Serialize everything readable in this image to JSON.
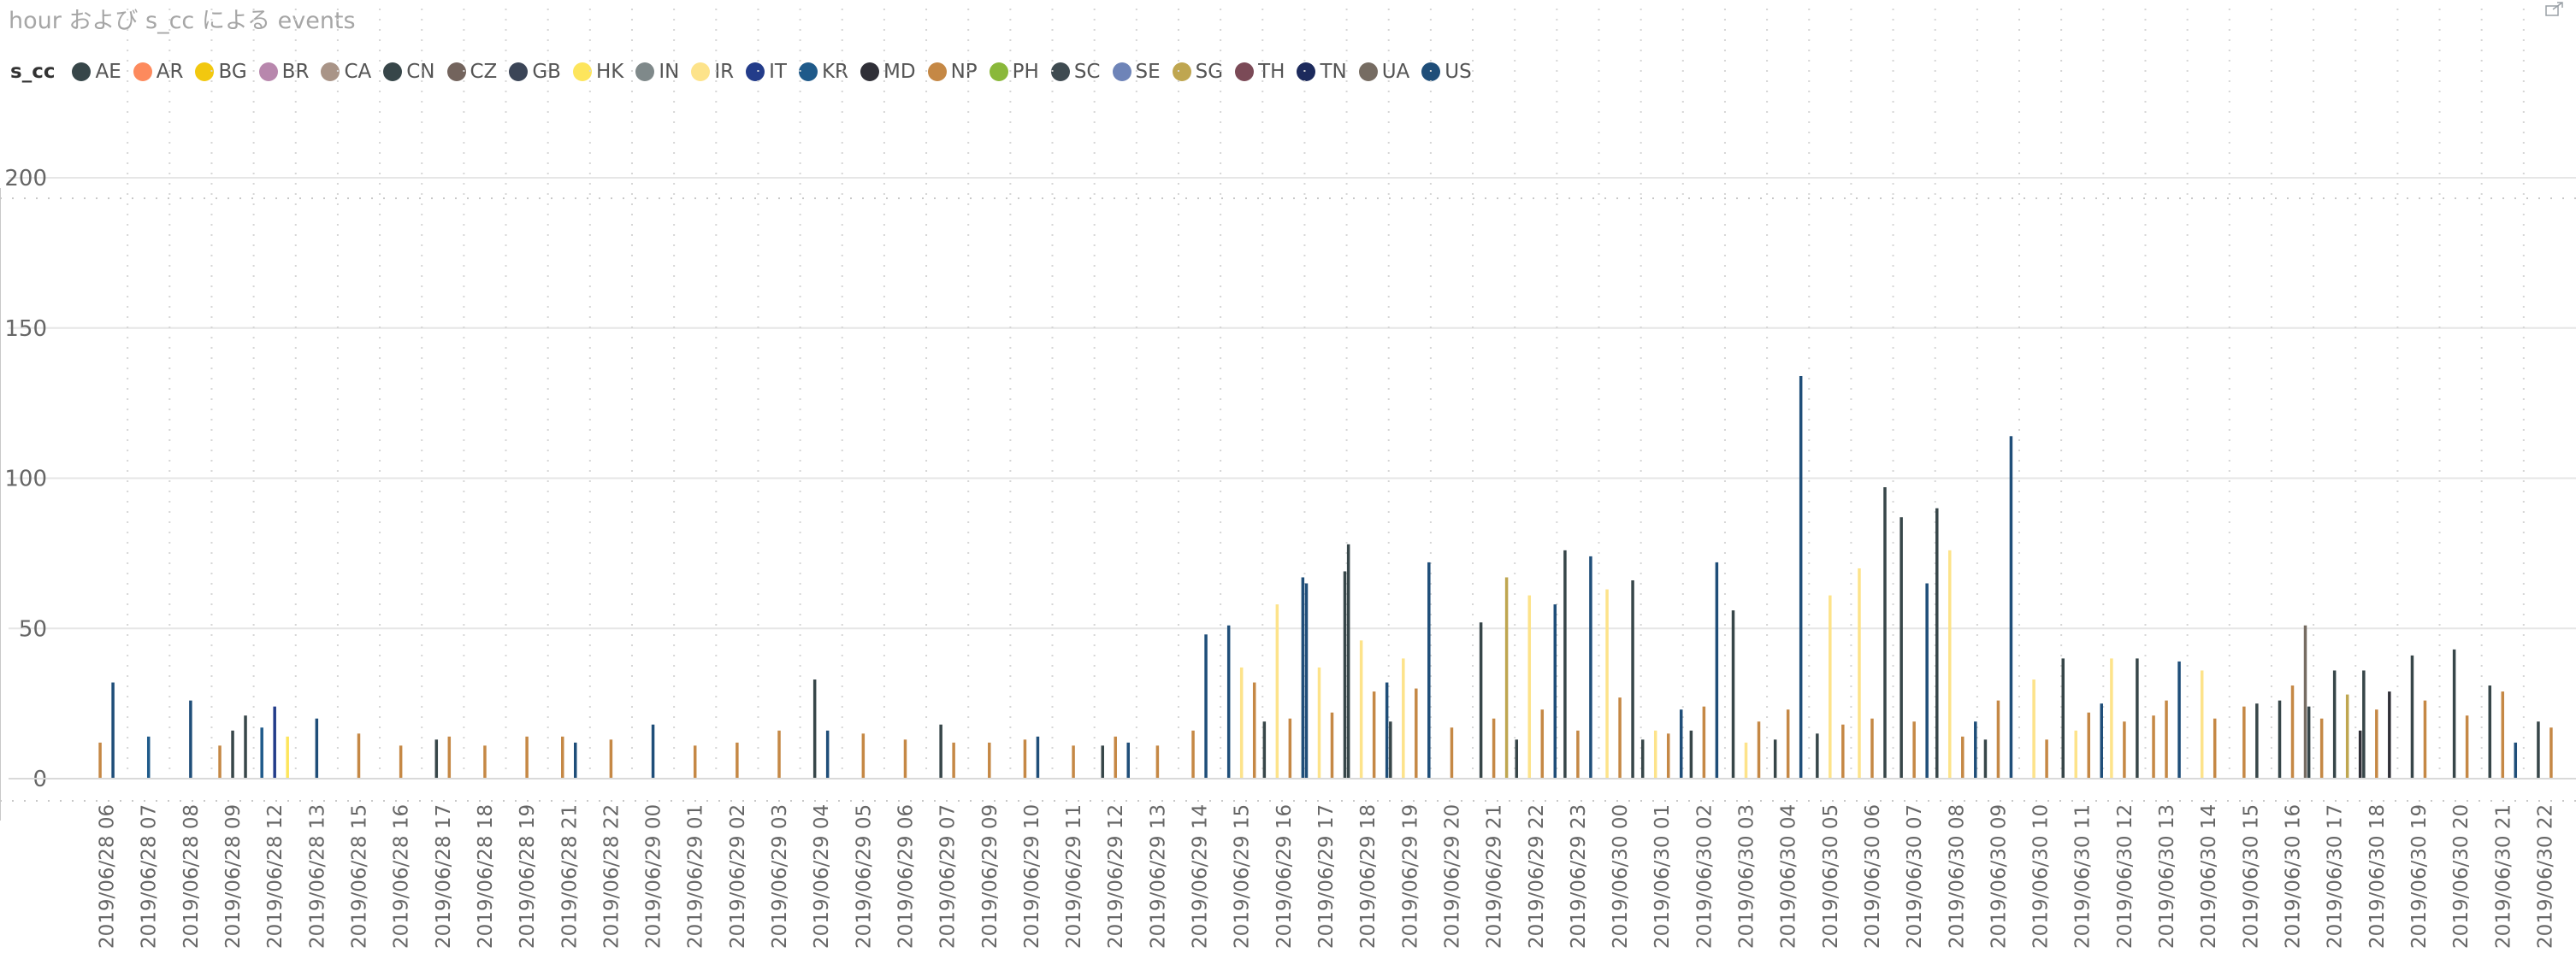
{
  "chart_data": {
    "type": "bar",
    "title": "hour および s_cc による events",
    "legend": {
      "title": "s_cc",
      "entries": [
        {
          "name": "AE",
          "color": "#374649"
        },
        {
          "name": "AR",
          "color": "#FD8A5D"
        },
        {
          "name": "BG",
          "color": "#F2C80F"
        },
        {
          "name": "BR",
          "color": "#B887AD"
        },
        {
          "name": "CA",
          "color": "#A99487"
        },
        {
          "name": "CN",
          "color": "#374649"
        },
        {
          "name": "CZ",
          "color": "#73645D"
        },
        {
          "name": "GB",
          "color": "#3B4557"
        },
        {
          "name": "HK",
          "color": "#FDE55C"
        },
        {
          "name": "IN",
          "color": "#7F898A"
        },
        {
          "name": "IR",
          "color": "#FDE38A"
        },
        {
          "name": "IT",
          "color": "#233C8A"
        },
        {
          "name": "KR",
          "color": "#1F5A8A"
        },
        {
          "name": "MD",
          "color": "#2F2F37"
        },
        {
          "name": "NP",
          "color": "#C58845"
        },
        {
          "name": "PH",
          "color": "#8AB83A"
        },
        {
          "name": "SC",
          "color": "#3F4B51"
        },
        {
          "name": "SE",
          "color": "#6E84B8"
        },
        {
          "name": "SG",
          "color": "#BFA650"
        },
        {
          "name": "TH",
          "color": "#7B4A57"
        },
        {
          "name": "TN",
          "color": "#1C2A5C"
        },
        {
          "name": "UA",
          "color": "#766C62"
        },
        {
          "name": "US",
          "color": "#1F4E79"
        }
      ]
    },
    "ylim": [
      0,
      200
    ],
    "yticks": [
      0,
      50,
      100,
      150,
      200
    ],
    "grid": true,
    "categories": [
      "2019/06/28 06",
      "2019/06/28 07",
      "2019/06/28 08",
      "2019/06/28 09",
      "2019/06/28 12",
      "2019/06/28 13",
      "2019/06/28 15",
      "2019/06/28 16",
      "2019/06/28 17",
      "2019/06/28 18",
      "2019/06/28 19",
      "2019/06/28 21",
      "2019/06/28 22",
      "2019/06/29 00",
      "2019/06/29 01",
      "2019/06/29 02",
      "2019/06/29 03",
      "2019/06/29 04",
      "2019/06/29 05",
      "2019/06/29 06",
      "2019/06/29 07",
      "2019/06/29 09",
      "2019/06/29 10",
      "2019/06/29 11",
      "2019/06/29 12",
      "2019/06/29 13",
      "2019/06/29 14",
      "2019/06/29 15",
      "2019/06/29 16",
      "2019/06/29 17",
      "2019/06/29 18",
      "2019/06/29 19",
      "2019/06/29 20",
      "2019/06/29 21",
      "2019/06/29 22",
      "2019/06/29 23",
      "2019/06/30 00",
      "2019/06/30 01",
      "2019/06/30 02",
      "2019/06/30 03",
      "2019/06/30 04",
      "2019/06/30 05",
      "2019/06/30 06",
      "2019/06/30 07",
      "2019/06/30 08",
      "2019/06/30 09",
      "2019/06/30 10",
      "2019/06/30 11",
      "2019/06/30 12",
      "2019/06/30 13",
      "2019/06/30 14",
      "2019/06/30 15",
      "2019/06/30 16",
      "2019/06/30 17",
      "2019/06/30 18",
      "2019/06/30 19",
      "2019/06/30 20",
      "2019/06/30 21",
      "2019/06/30 22"
    ],
    "bars": [
      {
        "cat": 0,
        "series": "NP",
        "value": 12
      },
      {
        "cat": 0,
        "series": "US",
        "value": 32
      },
      {
        "cat": 1,
        "series": "KR",
        "value": 14
      },
      {
        "cat": 2,
        "series": "US",
        "value": 26
      },
      {
        "cat": 3,
        "series": "NP",
        "value": 11
      },
      {
        "cat": 3,
        "series": "AE",
        "value": 16
      },
      {
        "cat": 3,
        "series": "CN",
        "value": 21
      },
      {
        "cat": 4,
        "series": "KR",
        "value": 17
      },
      {
        "cat": 4,
        "series": "IT",
        "value": 24
      },
      {
        "cat": 4,
        "series": "HK",
        "value": 14
      },
      {
        "cat": 5,
        "series": "US",
        "value": 20
      },
      {
        "cat": 6,
        "series": "NP",
        "value": 15
      },
      {
        "cat": 7,
        "series": "NP",
        "value": 11
      },
      {
        "cat": 8,
        "series": "AE",
        "value": 13
      },
      {
        "cat": 8,
        "series": "NP",
        "value": 14
      },
      {
        "cat": 9,
        "series": "NP",
        "value": 11
      },
      {
        "cat": 10,
        "series": "NP",
        "value": 14
      },
      {
        "cat": 11,
        "series": "NP",
        "value": 14
      },
      {
        "cat": 11,
        "series": "US",
        "value": 12
      },
      {
        "cat": 12,
        "series": "NP",
        "value": 13
      },
      {
        "cat": 13,
        "series": "US",
        "value": 18
      },
      {
        "cat": 14,
        "series": "NP",
        "value": 11
      },
      {
        "cat": 15,
        "series": "NP",
        "value": 12
      },
      {
        "cat": 16,
        "series": "NP",
        "value": 16
      },
      {
        "cat": 17,
        "series": "AE",
        "value": 33
      },
      {
        "cat": 17,
        "series": "US",
        "value": 16
      },
      {
        "cat": 18,
        "series": "NP",
        "value": 15
      },
      {
        "cat": 19,
        "series": "NP",
        "value": 13
      },
      {
        "cat": 20,
        "series": "AE",
        "value": 18
      },
      {
        "cat": 20,
        "series": "NP",
        "value": 12
      },
      {
        "cat": 21,
        "series": "NP",
        "value": 12
      },
      {
        "cat": 22,
        "series": "NP",
        "value": 13
      },
      {
        "cat": 22,
        "series": "US",
        "value": 14
      },
      {
        "cat": 23,
        "series": "NP",
        "value": 11
      },
      {
        "cat": 24,
        "series": "AE",
        "value": 11
      },
      {
        "cat": 24,
        "series": "NP",
        "value": 14
      },
      {
        "cat": 24,
        "series": "US",
        "value": 12
      },
      {
        "cat": 25,
        "series": "NP",
        "value": 11
      },
      {
        "cat": 26,
        "series": "NP",
        "value": 16
      },
      {
        "cat": 26,
        "series": "US",
        "value": 48
      },
      {
        "cat": 27,
        "series": "US",
        "value": 51
      },
      {
        "cat": 27,
        "series": "IR",
        "value": 37
      },
      {
        "cat": 27,
        "series": "NP",
        "value": 32
      },
      {
        "cat": 28,
        "series": "AE",
        "value": 19
      },
      {
        "cat": 28,
        "series": "IR",
        "value": 58
      },
      {
        "cat": 28,
        "series": "NP",
        "value": 20
      },
      {
        "cat": 28,
        "series": "US",
        "value": 67
      },
      {
        "cat": 29,
        "series": "US",
        "value": 65
      },
      {
        "cat": 29,
        "series": "IR",
        "value": 37
      },
      {
        "cat": 29,
        "series": "NP",
        "value": 22
      },
      {
        "cat": 29,
        "series": "AE",
        "value": 69
      },
      {
        "cat": 30,
        "series": "AE",
        "value": 78
      },
      {
        "cat": 30,
        "series": "IR",
        "value": 46
      },
      {
        "cat": 30,
        "series": "NP",
        "value": 29
      },
      {
        "cat": 30,
        "series": "US",
        "value": 32
      },
      {
        "cat": 31,
        "series": "AE",
        "value": 19
      },
      {
        "cat": 31,
        "series": "IR",
        "value": 40
      },
      {
        "cat": 31,
        "series": "NP",
        "value": 30
      },
      {
        "cat": 31,
        "series": "US",
        "value": 72
      },
      {
        "cat": 32,
        "series": "NP",
        "value": 17
      },
      {
        "cat": 33,
        "series": "AE",
        "value": 52
      },
      {
        "cat": 33,
        "series": "NP",
        "value": 20
      },
      {
        "cat": 33,
        "series": "SG",
        "value": 67
      },
      {
        "cat": 34,
        "series": "AE",
        "value": 13
      },
      {
        "cat": 34,
        "series": "IR",
        "value": 61
      },
      {
        "cat": 34,
        "series": "NP",
        "value": 23
      },
      {
        "cat": 34,
        "series": "US",
        "value": 58
      },
      {
        "cat": 35,
        "series": "AE",
        "value": 76
      },
      {
        "cat": 35,
        "series": "NP",
        "value": 16
      },
      {
        "cat": 35,
        "series": "US",
        "value": 74
      },
      {
        "cat": 36,
        "series": "IR",
        "value": 63
      },
      {
        "cat": 36,
        "series": "NP",
        "value": 27
      },
      {
        "cat": 36,
        "series": "AE",
        "value": 66
      },
      {
        "cat": 37,
        "series": "AE",
        "value": 13
      },
      {
        "cat": 37,
        "series": "IR",
        "value": 16
      },
      {
        "cat": 37,
        "series": "NP",
        "value": 15
      },
      {
        "cat": 37,
        "series": "US",
        "value": 23
      },
      {
        "cat": 38,
        "series": "AE",
        "value": 16
      },
      {
        "cat": 38,
        "series": "NP",
        "value": 24
      },
      {
        "cat": 38,
        "series": "US",
        "value": 72
      },
      {
        "cat": 39,
        "series": "AE",
        "value": 56
      },
      {
        "cat": 39,
        "series": "IR",
        "value": 12
      },
      {
        "cat": 39,
        "series": "NP",
        "value": 19
      },
      {
        "cat": 40,
        "series": "AE",
        "value": 13
      },
      {
        "cat": 40,
        "series": "NP",
        "value": 23
      },
      {
        "cat": 40,
        "series": "US",
        "value": 134
      },
      {
        "cat": 41,
        "series": "AE",
        "value": 15
      },
      {
        "cat": 41,
        "series": "IR",
        "value": 61
      },
      {
        "cat": 41,
        "series": "NP",
        "value": 18
      },
      {
        "cat": 42,
        "series": "IR",
        "value": 70
      },
      {
        "cat": 42,
        "series": "NP",
        "value": 20
      },
      {
        "cat": 42,
        "series": "AE",
        "value": 97
      },
      {
        "cat": 43,
        "series": "AE",
        "value": 87
      },
      {
        "cat": 43,
        "series": "NP",
        "value": 19
      },
      {
        "cat": 43,
        "series": "US",
        "value": 65
      },
      {
        "cat": 44,
        "series": "AE",
        "value": 90
      },
      {
        "cat": 44,
        "series": "IR",
        "value": 76
      },
      {
        "cat": 44,
        "series": "NP",
        "value": 14
      },
      {
        "cat": 44,
        "series": "US",
        "value": 19
      },
      {
        "cat": 45,
        "series": "AE",
        "value": 13
      },
      {
        "cat": 45,
        "series": "NP",
        "value": 26
      },
      {
        "cat": 45,
        "series": "US",
        "value": 114
      },
      {
        "cat": 46,
        "series": "IR",
        "value": 33
      },
      {
        "cat": 46,
        "series": "NP",
        "value": 13
      },
      {
        "cat": 47,
        "series": "AE",
        "value": 40
      },
      {
        "cat": 47,
        "series": "IR",
        "value": 16
      },
      {
        "cat": 47,
        "series": "NP",
        "value": 22
      },
      {
        "cat": 47,
        "series": "US",
        "value": 25
      },
      {
        "cat": 48,
        "series": "IR",
        "value": 40
      },
      {
        "cat": 48,
        "series": "NP",
        "value": 19
      },
      {
        "cat": 48,
        "series": "AE",
        "value": 40
      },
      {
        "cat": 49,
        "series": "NP",
        "value": 21
      },
      {
        "cat": 49,
        "series": "NP",
        "value": 26
      },
      {
        "cat": 49,
        "series": "US",
        "value": 39
      },
      {
        "cat": 50,
        "series": "IR",
        "value": 36
      },
      {
        "cat": 50,
        "series": "NP",
        "value": 20
      },
      {
        "cat": 51,
        "series": "NP",
        "value": 24
      },
      {
        "cat": 51,
        "series": "AE",
        "value": 25
      },
      {
        "cat": 52,
        "series": "AE",
        "value": 26
      },
      {
        "cat": 52,
        "series": "NP",
        "value": 31
      },
      {
        "cat": 52,
        "series": "UA",
        "value": 51
      },
      {
        "cat": 53,
        "series": "AE",
        "value": 24
      },
      {
        "cat": 53,
        "series": "NP",
        "value": 20
      },
      {
        "cat": 53,
        "series": "AE",
        "value": 36
      },
      {
        "cat": 53,
        "series": "SG",
        "value": 28
      },
      {
        "cat": 53,
        "series": "MD",
        "value": 16
      },
      {
        "cat": 54,
        "series": "AE",
        "value": 36
      },
      {
        "cat": 54,
        "series": "NP",
        "value": 23
      },
      {
        "cat": 54,
        "series": "MD",
        "value": 29
      },
      {
        "cat": 55,
        "series": "AE",
        "value": 41
      },
      {
        "cat": 55,
        "series": "NP",
        "value": 26
      },
      {
        "cat": 56,
        "series": "AE",
        "value": 43
      },
      {
        "cat": 56,
        "series": "NP",
        "value": 21
      },
      {
        "cat": 57,
        "series": "AE",
        "value": 31
      },
      {
        "cat": 57,
        "series": "NP",
        "value": 29
      },
      {
        "cat": 57,
        "series": "US",
        "value": 12
      },
      {
        "cat": 58,
        "series": "AE",
        "value": 19
      },
      {
        "cat": 58,
        "series": "NP",
        "value": 17
      }
    ]
  }
}
